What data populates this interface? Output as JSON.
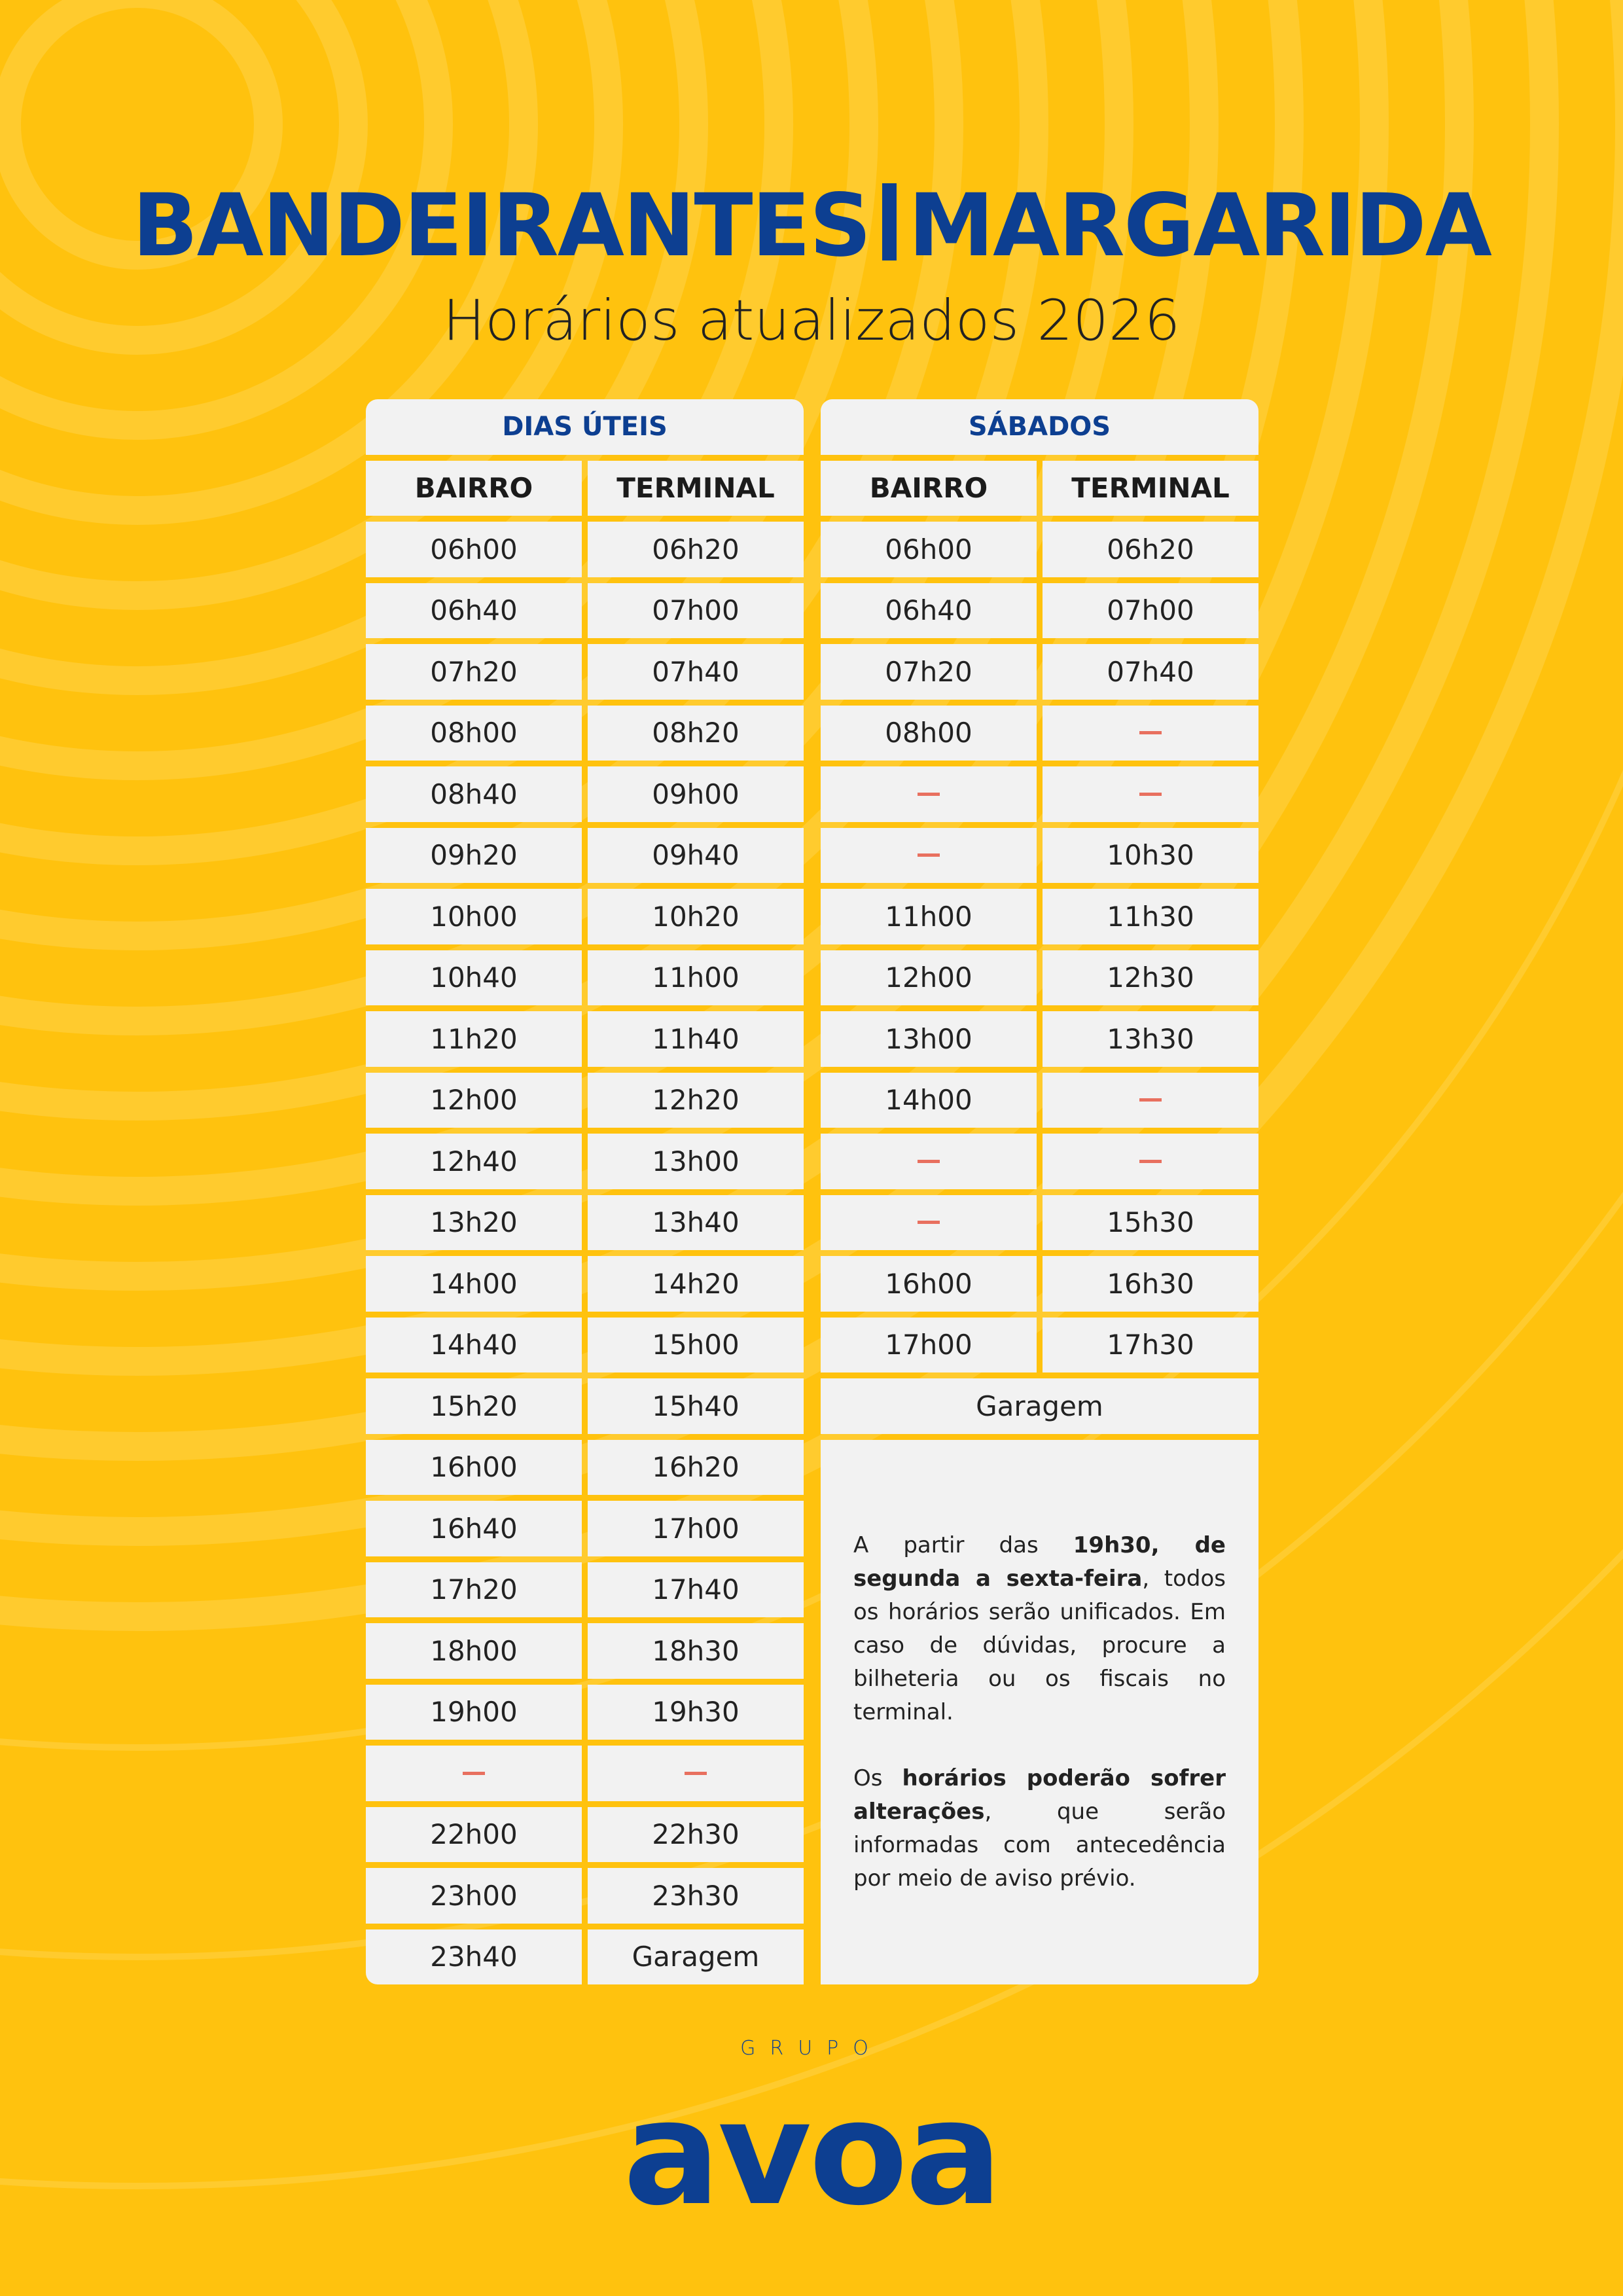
{
  "colors": {
    "background": "#FFC20E",
    "brand_blue": "#0D3F91",
    "cell": "#F2F2F2",
    "dash": "#E8705F"
  },
  "header": {
    "title_left": "BANDEIRANTES",
    "title_right": "MARGARIDA",
    "subtitle": "Horários atualizados 2026"
  },
  "weekdays": {
    "title": "DIAS ÚTEIS",
    "col1": "BAIRRO",
    "col2": "TERMINAL",
    "rows": [
      [
        "06h00",
        "06h20"
      ],
      [
        "06h40",
        "07h00"
      ],
      [
        "07h20",
        "07h40"
      ],
      [
        "08h00",
        "08h20"
      ],
      [
        "08h40",
        "09h00"
      ],
      [
        "09h20",
        "09h40"
      ],
      [
        "10h00",
        "10h20"
      ],
      [
        "10h40",
        "11h00"
      ],
      [
        "11h20",
        "11h40"
      ],
      [
        "12h00",
        "12h20"
      ],
      [
        "12h40",
        "13h00"
      ],
      [
        "13h20",
        "13h40"
      ],
      [
        "14h00",
        "14h20"
      ],
      [
        "14h40",
        "15h00"
      ],
      [
        "15h20",
        "15h40"
      ],
      [
        "16h00",
        "16h20"
      ],
      [
        "16h40",
        "17h00"
      ],
      [
        "17h20",
        "17h40"
      ],
      [
        "18h00",
        "18h30"
      ],
      [
        "19h00",
        "19h30"
      ],
      [
        "—",
        "—"
      ],
      [
        "22h00",
        "22h30"
      ],
      [
        "23h00",
        "23h30"
      ],
      [
        "23h40",
        "Garagem"
      ]
    ]
  },
  "saturdays": {
    "title": "SÁBADOS",
    "col1": "BAIRRO",
    "col2": "TERMINAL",
    "rows": [
      [
        "06h00",
        "06h20"
      ],
      [
        "06h40",
        "07h00"
      ],
      [
        "07h20",
        "07h40"
      ],
      [
        "08h00",
        "—"
      ],
      [
        "—",
        "—"
      ],
      [
        "—",
        "10h30"
      ],
      [
        "11h00",
        "11h30"
      ],
      [
        "12h00",
        "12h30"
      ],
      [
        "13h00",
        "13h30"
      ],
      [
        "14h00",
        "—"
      ],
      [
        "—",
        "—"
      ],
      [
        "—",
        "15h30"
      ],
      [
        "16h00",
        "16h30"
      ],
      [
        "17h00",
        "17h30"
      ]
    ],
    "final": "Garagem"
  },
  "note": {
    "p1_a": "A partir das ",
    "p1_b": "19h30, de segunda a sexta-feira",
    "p1_c": ", todos os horários serão unificados. Em caso de dúvidas, procure a bilheteria ou os fiscais no terminal.",
    "p2_a": "Os ",
    "p2_b": "horários poderão sofrer alterações",
    "p2_c": ", que serão informadas com antecedência por meio de aviso prévio."
  },
  "logo": {
    "grupo": "GRUPO",
    "name": "avoa"
  }
}
